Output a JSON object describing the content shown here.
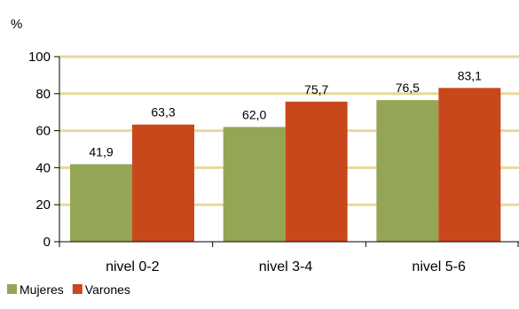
{
  "chart_data": {
    "type": "bar",
    "title": "",
    "xlabel": "",
    "ylabel": "%",
    "ylim": [
      0,
      100
    ],
    "yticks": [
      0,
      20,
      40,
      60,
      80,
      100
    ],
    "categories": [
      "nivel 0-2",
      "nivel 3-4",
      "nivel 5-6"
    ],
    "series": [
      {
        "name": "Mujeres",
        "values": [
          41.9,
          62.0,
          76.5
        ],
        "labels": [
          "41,9",
          "62,0",
          "76,5"
        ],
        "color": "#94a655"
      },
      {
        "name": "Varones",
        "values": [
          63.3,
          75.7,
          83.1
        ],
        "labels": [
          "63,3",
          "75,7",
          "83,1"
        ],
        "color": "#c8481b"
      }
    ],
    "gridline_color": "#e8d89a",
    "grid": true,
    "legend_position": "bottom-left"
  }
}
